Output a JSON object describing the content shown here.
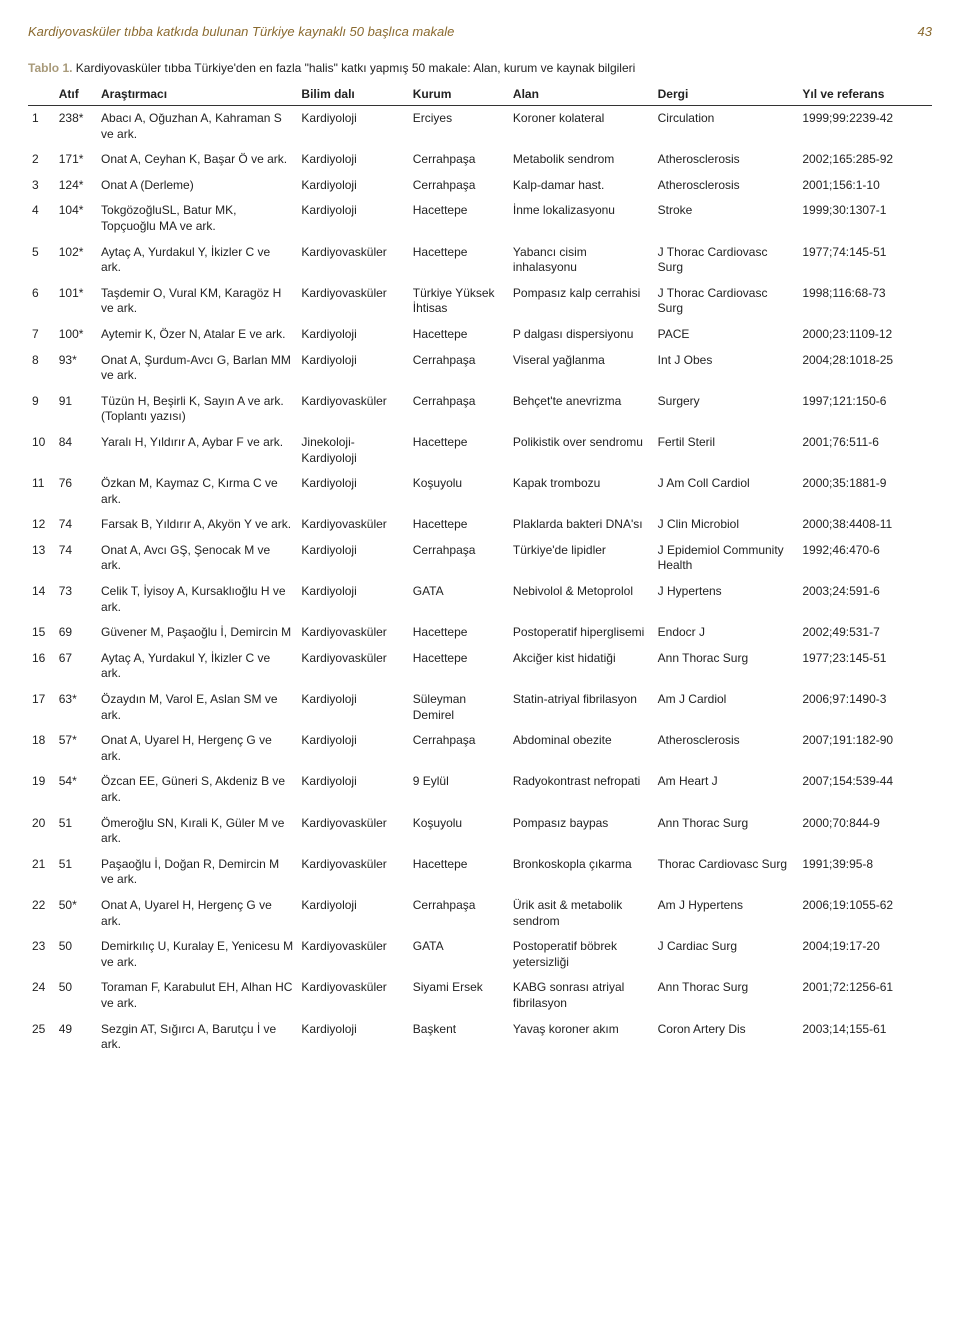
{
  "header": {
    "running_title": "Kardiyovasküler tıbba katkıda bulunan Türkiye kaynaklı 50 başlıca makale",
    "page_number": "43"
  },
  "table": {
    "title_label": "Tablo 1.",
    "title_rest": " Kardiyovasküler tıbba Türkiye'den en fazla \"halis\" katkı yapmış 50 makale: Alan, kurum ve kaynak bilgileri",
    "columns": [
      "",
      "Atıf",
      "Araştırmacı",
      "Bilim dalı",
      "Kurum",
      "Alan",
      "Dergi",
      "Yıl ve referans"
    ],
    "rows": [
      [
        "1",
        "238*",
        "Abacı A, Oğuzhan A, Kahraman S ve ark.",
        "Kardiyoloji",
        "Erciyes",
        "Koroner kolateral",
        "Circulation",
        "1999;99:2239-42"
      ],
      [
        "2",
        "171*",
        "Onat A, Ceyhan K, Başar Ö ve ark.",
        "Kardiyoloji",
        "Cerrahpaşa",
        "Metabolik sendrom",
        "Atherosclerosis",
        "2002;165:285-92"
      ],
      [
        "3",
        "124*",
        "Onat A (Derleme)",
        "Kardiyoloji",
        "Cerrahpaşa",
        "Kalp-damar hast.",
        "Atherosclerosis",
        "2001;156:1-10"
      ],
      [
        "4",
        "104*",
        "TokgözoğluSL, Batur MK, Topçuoğlu MA ve ark.",
        "Kardiyoloji",
        "Hacettepe",
        "İnme lokalizasyonu",
        "Stroke",
        "1999;30:1307-1"
      ],
      [
        "5",
        "102*",
        "Aytaç A, Yurdakul Y, İkizler C ve ark.",
        "Kardiyovasküler",
        "Hacettepe",
        "Yabancı cisim inhalasyonu",
        "J Thorac Cardiovasc Surg",
        "1977;74:145-51"
      ],
      [
        "6",
        "101*",
        "Taşdemir O, Vural KM, Karagöz H ve ark.",
        "Kardiyovasküler",
        "Türkiye Yüksek İhtisas",
        "Pompasız kalp cerrahisi",
        "J Thorac Cardiovasc Surg",
        "1998;116:68-73"
      ],
      [
        "7",
        "100*",
        "Aytemir K, Özer N, Atalar E  ve ark.",
        "Kardiyoloji",
        "Hacettepe",
        "P dalgası dispersiyonu",
        "PACE",
        "2000;23:1109-12"
      ],
      [
        "8",
        "93*",
        "Onat A, Şurdum-Avcı G, Barlan MM ve ark.",
        "Kardiyoloji",
        "Cerrahpaşa",
        "Viseral yağlanma",
        "Int J Obes",
        "2004;28:1018-25"
      ],
      [
        "9",
        "91",
        "Tüzün H, Beşirli K, Sayın A ve ark. (Toplantı yazısı)",
        "Kardiyovasküler",
        "Cerrahpaşa",
        "Behçet'te anevrizma",
        "Surgery",
        "1997;121:150-6"
      ],
      [
        "10",
        "84",
        "Yaralı H, Yıldırır A, Aybar F ve ark.",
        "Jinekoloji-Kardiyoloji",
        "Hacettepe",
        "Polikistik over sendromu",
        "Fertil Steril",
        "2001;76:511-6"
      ],
      [
        "11",
        "76",
        "Özkan M, Kaymaz C, Kırma C ve ark.",
        "Kardiyoloji",
        "Koşuyolu",
        "Kapak trombozu",
        "J Am Coll Cardiol",
        "2000;35:1881-9"
      ],
      [
        "12",
        "74",
        "Farsak B, Yıldırır A, Akyön Y ve ark.",
        "Kardiyovasküler",
        "Hacettepe",
        "Plaklarda bakteri DNA'sı",
        "J Clin Microbiol",
        "2000;38:4408-11"
      ],
      [
        "13",
        "74",
        "Onat A, Avcı GŞ, Şenocak M ve ark.",
        "Kardiyoloji",
        "Cerrahpaşa",
        "Türkiye'de lipidler",
        "J Epidemiol Community Health",
        "1992;46:470-6"
      ],
      [
        "14",
        "73",
        "Celik T, İyisoy A, Kursaklıoğlu H ve ark.",
        "Kardiyoloji",
        "GATA",
        "Nebivolol & Metoprolol",
        "J Hypertens",
        "2003;24:591-6"
      ],
      [
        "15",
        "69",
        "Güvener M, Paşaoğlu İ, Demircin M",
        "Kardiyovasküler",
        "Hacettepe",
        "Postoperatif hiperglisemi",
        "Endocr J",
        "2002;49:531-7"
      ],
      [
        "16",
        "67",
        "Aytaç A, Yurdakul Y, İkizler C ve ark.",
        "Kardiyovasküler",
        "Hacettepe",
        "Akciğer kist hidatiği",
        "Ann Thorac Surg",
        "1977;23:145-51"
      ],
      [
        "17",
        "63*",
        "Özaydın M, Varol E, Aslan SM ve ark.",
        "Kardiyoloji",
        "Süleyman Demirel",
        "Statin-atriyal fibrilasyon",
        "Am J Cardiol",
        "2006;97:1490-3"
      ],
      [
        "18",
        "57*",
        "Onat A, Uyarel H, Hergenç G ve ark.",
        "Kardiyoloji",
        "Cerrahpaşa",
        "Abdominal obezite",
        "Atherosclerosis",
        "2007;191:182-90"
      ],
      [
        "19",
        "54*",
        "Özcan EE, Güneri S, Akdeniz B ve ark.",
        "Kardiyoloji",
        "9 Eylül",
        "Radyokontrast nefropati",
        "Am Heart J",
        "2007;154:539-44"
      ],
      [
        "20",
        "51",
        "Ömeroğlu SN, Kırali K, Güler M ve ark.",
        "Kardiyovasküler",
        "Koşuyolu",
        "Pompasız baypas",
        "Ann Thorac Surg",
        "2000;70:844-9"
      ],
      [
        "21",
        "51",
        "Paşaoğlu İ, Doğan R, Demircin M ve ark.",
        "Kardiyovasküler",
        "Hacettepe",
        "Bronkoskopla çıkarma",
        "Thorac Cardiovasc Surg",
        "1991;39:95-8"
      ],
      [
        "22",
        "50*",
        "Onat A, Uyarel H, Hergenç G ve ark.",
        "Kardiyoloji",
        "Cerrahpaşa",
        "Ürik asit & metabolik sendrom",
        "Am J Hypertens",
        "2006;19:1055-62"
      ],
      [
        "23",
        "50",
        "Demirkılıç U, Kuralay E, Yenicesu M ve ark.",
        "Kardiyovasküler",
        "GATA",
        "Postoperatif böbrek yetersizliği",
        "J Cardiac Surg",
        "2004;19:17-20"
      ],
      [
        "24",
        "50",
        "Toraman F, Karabulut EH, Alhan HC ve ark.",
        "Kardiyovasküler",
        "Siyami Ersek",
        "KABG sonrası atriyal fibrilasyon",
        "Ann Thorac Surg",
        "2001;72:1256-61"
      ],
      [
        "25",
        "49",
        "Sezgin AT, Sığırcı A, Barutçu İ ve ark.",
        "Kardiyoloji",
        "Başkent",
        "Yavaş koroner akım",
        "Coron Artery Dis",
        "2003;14;155-61"
      ]
    ]
  }
}
